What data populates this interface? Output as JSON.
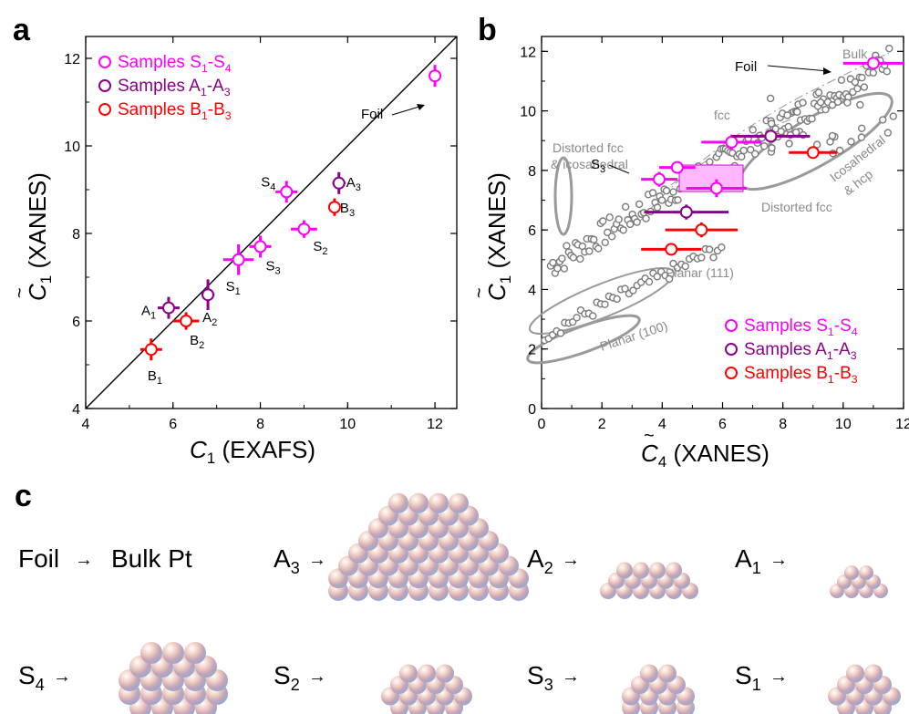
{
  "chart_data": [
    {
      "panel": "a",
      "type": "scatter",
      "xlabel": "C1 (EXAFS)",
      "ylabel": "C̃1 (XANES)",
      "xlim": [
        4,
        12.5
      ],
      "ylim": [
        4,
        12.5
      ],
      "xticks": [
        4,
        6,
        8,
        10,
        12
      ],
      "yticks": [
        4,
        6,
        8,
        10,
        12
      ],
      "reference_line": "y = x",
      "legend": [
        {
          "pre": "Samples S",
          "s1": "1",
          "mid": "-S",
          "s2": "4",
          "color": "#ff00ff"
        },
        {
          "pre": "Samples A",
          "s1": "1",
          "mid": "-A",
          "s2": "3",
          "color": "#8b008b"
        },
        {
          "pre": "Samples B",
          "s1": "1",
          "mid": "-B",
          "s2": "3",
          "color": "#ff0000"
        }
      ],
      "legend_position": "top-left",
      "series": [
        {
          "name": "Samples S1-S4",
          "color": "#ff00ff",
          "points": [
            {
              "label": "S",
              "sub": "1",
              "x": 7.5,
              "y": 7.4,
              "xerr": 0.35,
              "yerr": 0.35
            },
            {
              "label": "S",
              "sub": "2",
              "x": 9.0,
              "y": 8.1,
              "xerr": 0.3,
              "yerr": 0.2
            },
            {
              "label": "S",
              "sub": "3",
              "x": 8.0,
              "y": 7.7,
              "xerr": 0.25,
              "yerr": 0.25
            },
            {
              "label": "S",
              "sub": "4",
              "x": 8.6,
              "y": 8.95,
              "xerr": 0.25,
              "yerr": 0.25
            },
            {
              "label": "Foil",
              "sub": "",
              "x": 12.0,
              "y": 11.6,
              "xerr": 0.0,
              "yerr": 0.25
            }
          ]
        },
        {
          "name": "Samples A1-A3",
          "color": "#8b008b",
          "points": [
            {
              "label": "A",
              "sub": "1",
              "x": 5.9,
              "y": 6.3,
              "xerr": 0.25,
              "yerr": 0.25
            },
            {
              "label": "A",
              "sub": "2",
              "x": 6.8,
              "y": 6.6,
              "xerr": 0.15,
              "yerr": 0.35
            },
            {
              "label": "A",
              "sub": "3",
              "x": 9.8,
              "y": 9.15,
              "xerr": 0.15,
              "yerr": 0.25
            }
          ]
        },
        {
          "name": "Samples B1-B3",
          "color": "#ff0000",
          "points": [
            {
              "label": "B",
              "sub": "1",
              "x": 5.5,
              "y": 5.35,
              "xerr": 0.25,
              "yerr": 0.25
            },
            {
              "label": "B",
              "sub": "2",
              "x": 6.3,
              "y": 6.0,
              "xerr": 0.3,
              "yerr": 0.2
            },
            {
              "label": "B",
              "sub": "3",
              "x": 9.7,
              "y": 8.6,
              "xerr": 0.1,
              "yerr": 0.2
            }
          ]
        }
      ]
    },
    {
      "panel": "b",
      "type": "scatter",
      "xlabel": "C̃4 (XANES)",
      "ylabel": "C̃1 (XANES)",
      "xlim": [
        0,
        12
      ],
      "ylim": [
        0,
        12.5
      ],
      "xticks": [
        0,
        2,
        4,
        6,
        8,
        10,
        12
      ],
      "yticks": [
        0,
        2,
        4,
        6,
        8,
        10,
        12
      ],
      "legend": [
        {
          "pre": "Samples S",
          "s1": "1",
          "mid": "-S",
          "s2": "4",
          "color": "#ff00ff"
        },
        {
          "pre": "Samples A",
          "s1": "1",
          "mid": "-A",
          "s2": "3",
          "color": "#8b008b"
        },
        {
          "pre": "Samples B",
          "s1": "1",
          "mid": "-B",
          "s2": "3",
          "color": "#ff0000"
        }
      ],
      "legend_position": "bottom-right",
      "region_labels": [
        "Bulk",
        "fcc",
        "Distorted fcc",
        "& icosahedral",
        "Icosahedral",
        "& hcp",
        "Distorted fcc",
        "Planar (111)",
        "Planar (100)"
      ],
      "series": [
        {
          "name": "Samples S1-S4",
          "color": "#ff00ff",
          "points": [
            {
              "x": 11.0,
              "y": 11.6,
              "xerr": 1.0,
              "yerr": 0.2
            },
            {
              "x": 3.9,
              "y": 7.7,
              "xerr": 0.6,
              "yerr": 0.25
            },
            {
              "x": 4.5,
              "y": 8.1,
              "xerr": 0.6,
              "yerr": 0.2
            },
            {
              "x": 6.3,
              "y": 8.95,
              "xerr": 1.0,
              "yerr": 0.25
            },
            {
              "x": 5.8,
              "y": 7.4,
              "xerr": 1.0,
              "yerr": 0.3
            }
          ]
        },
        {
          "name": "Samples A1-A3",
          "color": "#8b008b",
          "points": [
            {
              "x": 4.8,
              "y": 6.6,
              "xerr": 1.4,
              "yerr": 0.25
            },
            {
              "x": 7.6,
              "y": 9.15,
              "xerr": 1.3,
              "yerr": 0.2
            }
          ]
        },
        {
          "name": "Samples B1-B3",
          "color": "#ff0000",
          "points": [
            {
              "x": 4.3,
              "y": 5.35,
              "xerr": 1.0,
              "yerr": 0.2
            },
            {
              "x": 5.3,
              "y": 6.0,
              "xerr": 1.2,
              "yerr": 0.25
            },
            {
              "x": 9.0,
              "y": 8.6,
              "xerr": 0.8,
              "yerr": 0.15
            }
          ]
        }
      ]
    }
  ],
  "figure_labels": {
    "a": "a",
    "b": "b",
    "c": "c",
    "foil": "Foil",
    "s3": "S",
    "s3_sub": "3"
  },
  "panel_c": {
    "rows": [
      [
        {
          "label": "Foil",
          "sub": "",
          "target": "Bulk Pt"
        },
        {
          "label": "A",
          "sub": "3",
          "target": "cluster"
        },
        {
          "label": "A",
          "sub": "2",
          "target": "cluster"
        },
        {
          "label": "A",
          "sub": "1",
          "target": "cluster"
        }
      ],
      [
        {
          "label": "S",
          "sub": "4",
          "target": "cluster"
        },
        {
          "label": "S",
          "sub": "2",
          "target": "cluster"
        },
        {
          "label": "S",
          "sub": "3",
          "target": "cluster"
        },
        {
          "label": "S",
          "sub": "1",
          "target": "cluster"
        }
      ]
    ],
    "arrow": "→"
  }
}
